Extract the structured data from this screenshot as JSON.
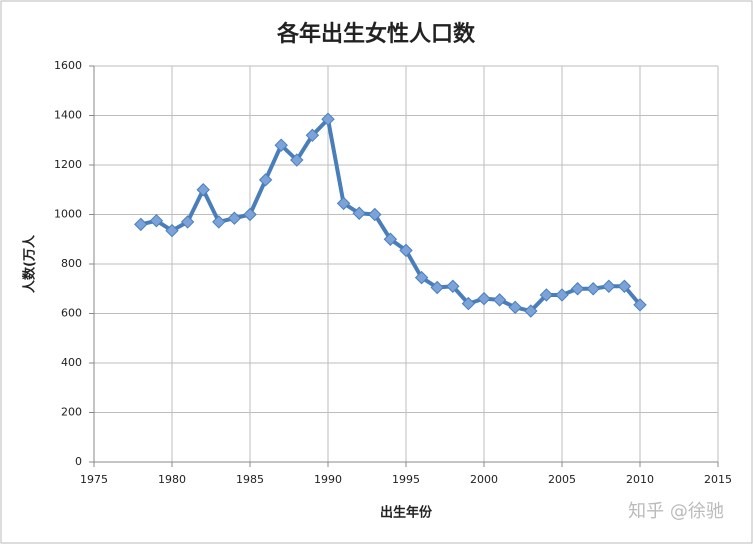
{
  "chart_data": {
    "type": "line",
    "title": "各年出生女性人口数",
    "y_label": "人数(万人",
    "x_label": "出生年份",
    "watermark": "知乎 @徐驰",
    "x": [
      1978,
      1979,
      1980,
      1981,
      1982,
      1983,
      1984,
      1985,
      1986,
      1987,
      1988,
      1989,
      1990,
      1991,
      1992,
      1993,
      1994,
      1995,
      1996,
      1997,
      1998,
      1999,
      2000,
      2001,
      2002,
      2003,
      2004,
      2005,
      2006,
      2007,
      2008,
      2009,
      2010
    ],
    "values": [
      960,
      975,
      935,
      970,
      1100,
      970,
      985,
      1000,
      1140,
      1280,
      1220,
      1320,
      1385,
      1045,
      1005,
      1000,
      900,
      855,
      745,
      705,
      710,
      640,
      660,
      655,
      625,
      610,
      675,
      675,
      700,
      700,
      710,
      710,
      635
    ],
    "color": "#4a7ebb",
    "marker_color": "#7ba3d9",
    "xlim": [
      1975,
      2015
    ],
    "xticks": [
      1975,
      1980,
      1985,
      1990,
      1995,
      2000,
      2005,
      2010,
      2015
    ],
    "ylim": [
      0,
      1600
    ],
    "yticks": [
      0,
      200,
      400,
      600,
      800,
      1000,
      1200,
      1400,
      1600
    ],
    "grid": true
  }
}
